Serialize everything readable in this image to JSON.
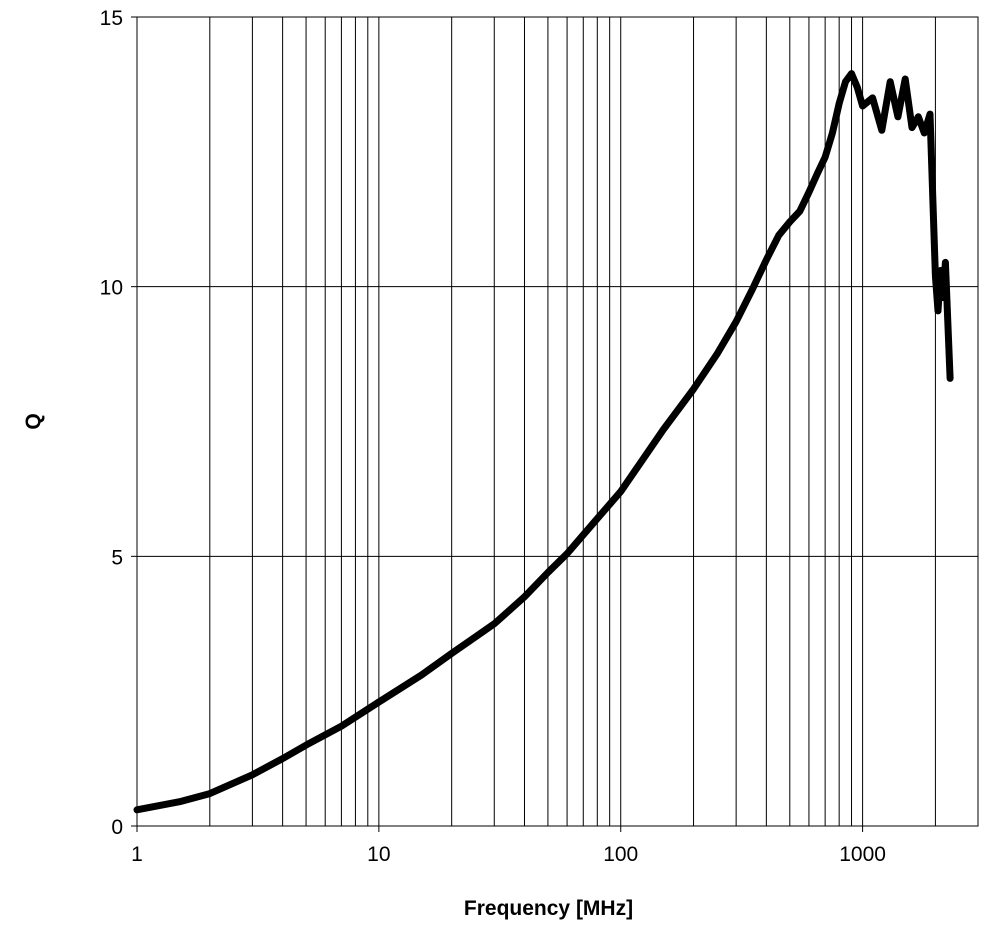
{
  "chart_data": {
    "type": "line",
    "title": "",
    "xlabel": "Frequency [MHz]",
    "ylabel": "Q",
    "x_scale": "log",
    "xlim": [
      1,
      3000
    ],
    "ylim": [
      0,
      15
    ],
    "x_ticks": [
      1,
      10,
      100,
      1000
    ],
    "x_tick_labels": [
      "1",
      "10",
      "100",
      "1000"
    ],
    "y_ticks": [
      0,
      5,
      10,
      15
    ],
    "y_tick_labels": [
      "0",
      "5",
      "10",
      "15"
    ],
    "grid": true,
    "legend": "none",
    "line_color": "#000000",
    "series": [
      {
        "x": [
          1,
          1.5,
          2,
          3,
          4,
          5,
          7,
          10,
          15,
          20,
          30,
          40,
          50,
          60,
          70,
          80,
          100,
          150,
          200,
          250,
          300,
          350,
          400,
          450,
          500,
          550,
          600,
          650,
          700,
          750,
          800,
          850,
          900,
          950,
          1000,
          1100,
          1200,
          1300,
          1400,
          1500,
          1600,
          1700,
          1800,
          1900,
          2000,
          2050,
          2100,
          2150,
          2200,
          2300
        ],
        "y": [
          0.3,
          0.45,
          0.6,
          0.95,
          1.25,
          1.5,
          1.85,
          2.3,
          2.8,
          3.2,
          3.75,
          4.25,
          4.7,
          5.05,
          5.4,
          5.7,
          6.2,
          7.35,
          8.1,
          8.75,
          9.35,
          9.95,
          10.5,
          10.95,
          11.2,
          11.4,
          11.75,
          12.1,
          12.4,
          12.85,
          13.4,
          13.8,
          13.95,
          13.7,
          13.35,
          13.5,
          12.9,
          13.8,
          13.15,
          13.85,
          12.95,
          13.15,
          12.85,
          13.2,
          10.2,
          9.55,
          10.3,
          9.8,
          10.45,
          8.3
        ]
      }
    ]
  }
}
